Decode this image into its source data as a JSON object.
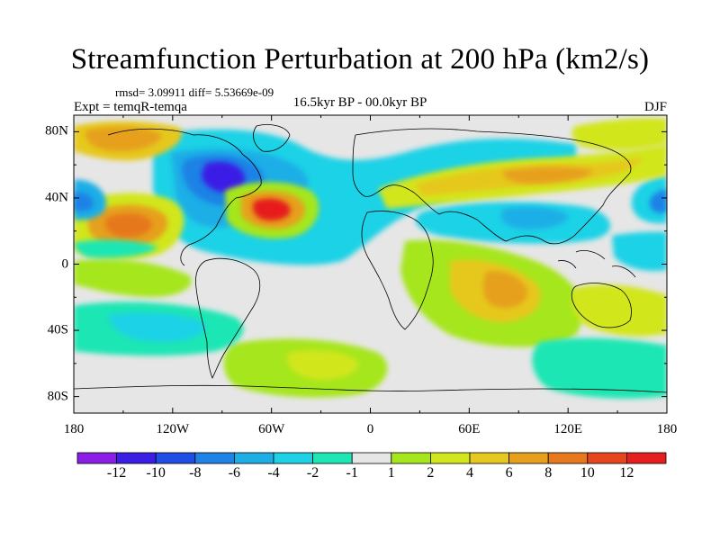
{
  "title": "Streamfunction Perturbation at 200 hPa (km2/s)",
  "stats": "rmsd= 3.09911 diff= 5.53669e-09",
  "experiment": "Expt = temqR-temqa",
  "period": "16.5kyr BP - 00.0kyr BP",
  "season": "DJF",
  "map": {
    "lat_ticks": [
      {
        "label": "80N",
        "value": 80
      },
      {
        "label": "40N",
        "value": 40
      },
      {
        "label": "0",
        "value": 0
      },
      {
        "label": "40S",
        "value": -40
      },
      {
        "label": "80S",
        "value": -80
      }
    ],
    "lon_ticks": [
      {
        "label": "180",
        "value": -180
      },
      {
        "label": "120W",
        "value": -120
      },
      {
        "label": "60W",
        "value": -60
      },
      {
        "label": "0",
        "value": 0
      },
      {
        "label": "60E",
        "value": 60
      },
      {
        "label": "120E",
        "value": 120
      },
      {
        "label": "180",
        "value": 180
      }
    ]
  },
  "colorbar": {
    "colors": [
      "#8a1ee6",
      "#3a1ee6",
      "#1e4ee6",
      "#1e82e6",
      "#1eaee6",
      "#1ed2e6",
      "#1ee6b4",
      "#e6e6e6",
      "#a6e61e",
      "#d2e61e",
      "#e6c81e",
      "#e6a01e",
      "#e6781e",
      "#e6461e",
      "#e61e1e"
    ],
    "tick_labels": [
      {
        "label": "-12",
        "value": -12
      },
      {
        "label": "-10",
        "value": -10
      },
      {
        "label": "-8",
        "value": -8
      },
      {
        "label": "-6",
        "value": -6
      },
      {
        "label": "-4",
        "value": -4
      },
      {
        "label": "-2",
        "value": -2
      },
      {
        "label": "-1",
        "value": -1
      },
      {
        "label": "1",
        "value": 1
      },
      {
        "label": "2",
        "value": 2
      },
      {
        "label": "4",
        "value": 4
      },
      {
        "label": "6",
        "value": 6
      },
      {
        "label": "8",
        "value": 8
      },
      {
        "label": "10",
        "value": 10
      },
      {
        "label": "12",
        "value": 12
      }
    ]
  },
  "anomaly_centers": [
    {
      "name": "north-america-low",
      "lon": -85,
      "lat": 55,
      "value": -11
    },
    {
      "name": "west-atlantic-high",
      "lon": -50,
      "lat": 34,
      "value": 11
    },
    {
      "name": "north-pacific-high",
      "lon": -140,
      "lat": 25,
      "value": 8
    },
    {
      "name": "north-pacific-low",
      "lon": -175,
      "lat": 40,
      "value": -6
    },
    {
      "name": "date-line-low",
      "lon": 178,
      "lat": 40,
      "value": -6
    },
    {
      "name": "eurasia-high",
      "lon": 90,
      "lat": 50,
      "value": 7
    },
    {
      "name": "south-asia-low",
      "lon": 90,
      "lat": 20,
      "value": -4
    },
    {
      "name": "indian-ocean-high",
      "lon": 70,
      "lat": -22,
      "value": 6
    },
    {
      "name": "arctic-high",
      "lon": -140,
      "lat": 78,
      "value": 5
    },
    {
      "name": "south-pacific-low",
      "lon": -130,
      "lat": -48,
      "value": -4
    },
    {
      "name": "southern-ocean-high",
      "lon": -20,
      "lat": -55,
      "value": 3
    }
  ]
}
